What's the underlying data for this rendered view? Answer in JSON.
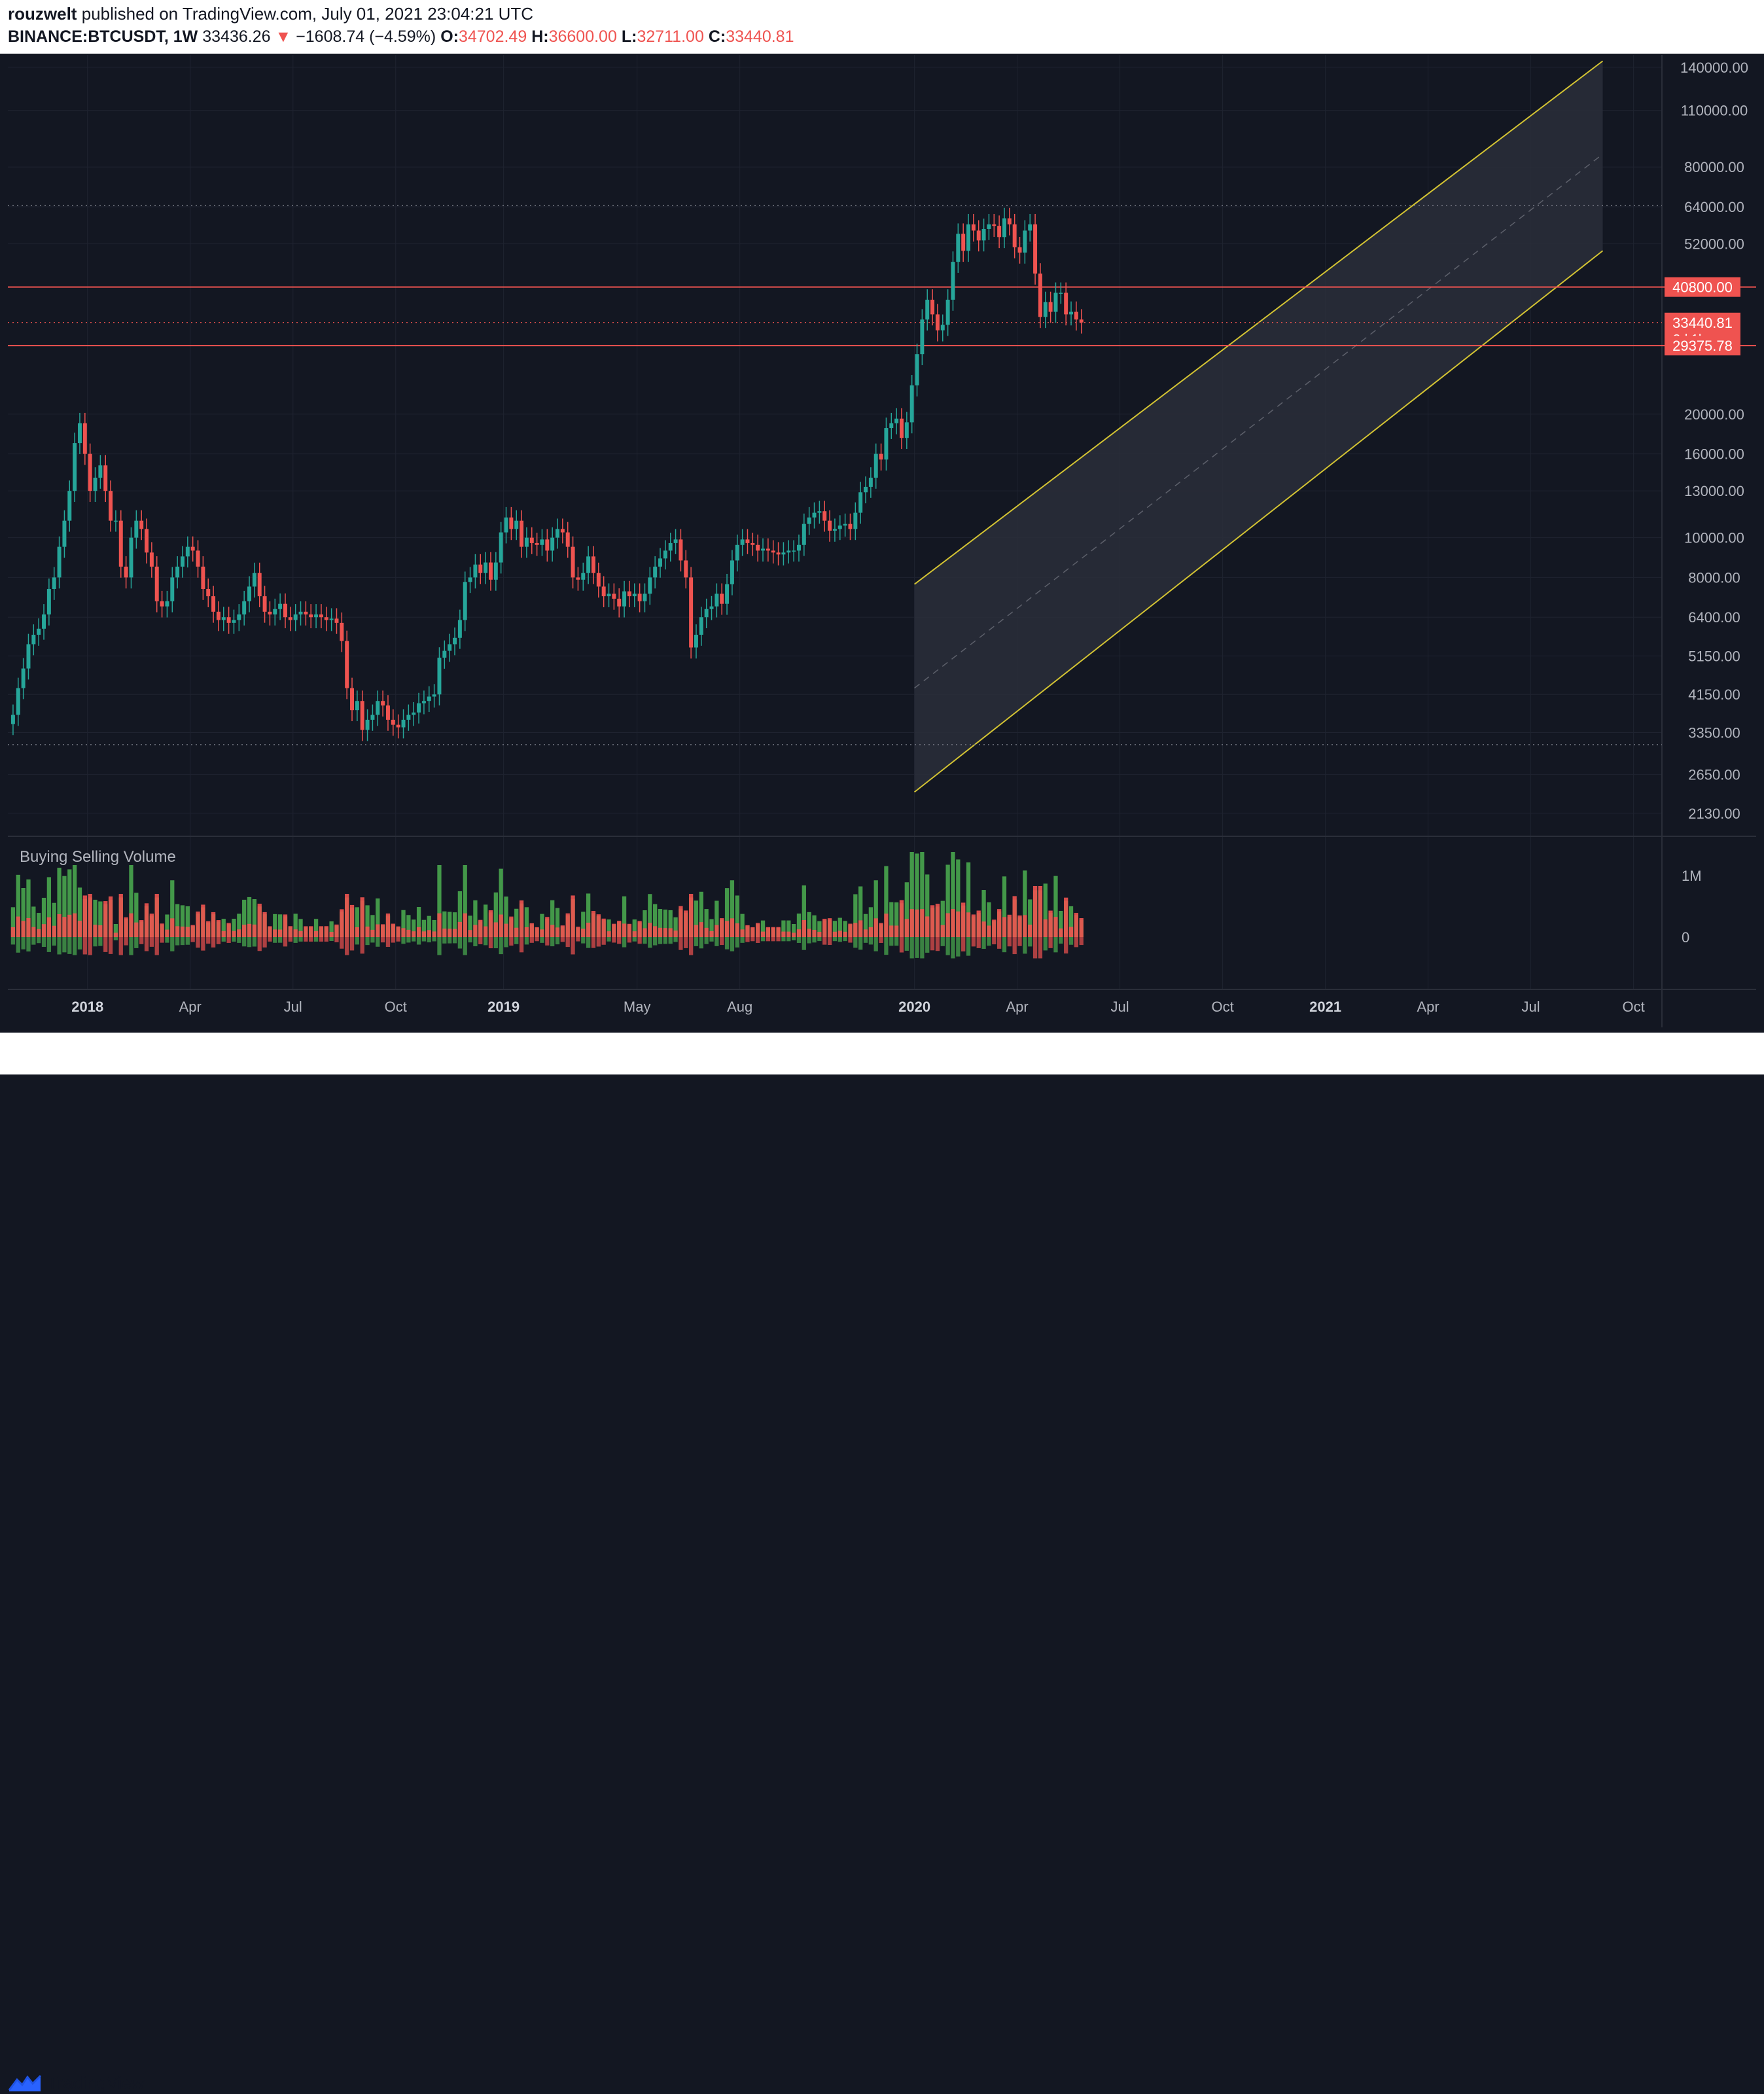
{
  "header": {
    "author": "rouzwelt",
    "published_text": "published on TradingView.com, July 01, 2021 23:04:21 UTC",
    "symbol": "BINANCE:BTCUSDT, 1W",
    "last": "33436.26",
    "change_arrow": "▼",
    "change": "−1608.74 (−4.59%)",
    "o_label": "O:",
    "o_value": "34702.49",
    "h_label": "H:",
    "h_value": "36600.00",
    "l_label": "L:",
    "l_value": "32711.00",
    "c_label": "C:",
    "c_value": "33440.81"
  },
  "footer": {
    "brand": "TradingView"
  },
  "volume_panel": {
    "title": "Buying Selling Volume"
  },
  "colors": {
    "background": "#131722",
    "grid": "#1f2330",
    "up": "#26a69a",
    "down": "#ef5350",
    "channel": "#d4c433",
    "channel_fill": "#2a2e3a",
    "hline": "#ef5350",
    "vol_buy": "#4caf50",
    "vol_sell": "#ef5350",
    "axis_text": "#b2b5be"
  },
  "chart_data": {
    "type": "candlestick",
    "title": "BINANCE:BTCUSDT, 1W",
    "y_scale": "log",
    "ylim": [
      1900,
      150000
    ],
    "y_ticks": [
      "140000.00",
      "110000.00",
      "80000.00",
      "64000.00",
      "52000.00",
      "40800.00",
      "33440.81",
      "29375.78",
      "20000.00",
      "16000.00",
      "13000.00",
      "10000.00",
      "8000.00",
      "6400.00",
      "5150.00",
      "4150.00",
      "3350.00",
      "2650.00",
      "2130.00"
    ],
    "y_tick_values": [
      140000,
      110000,
      80000,
      64000,
      52000,
      16000,
      13000,
      10000,
      8000,
      6400,
      5150,
      4150,
      3350,
      2650,
      2130,
      20000
    ],
    "price_labels": [
      {
        "text": "40800.00",
        "value": 40800
      },
      {
        "text": "33440.81",
        "value": 33440.81,
        "sub": "3d 1h"
      },
      {
        "text": "29375.78",
        "value": 29375.78
      }
    ],
    "x_ticks": [
      "2018",
      "Apr",
      "Jul",
      "Oct",
      "2019",
      "May",
      "Aug",
      "2020",
      "Apr",
      "Jul",
      "Oct",
      "2021",
      "Apr",
      "Jul",
      "Oct"
    ],
    "x_tick_weeks": [
      15,
      35,
      55,
      75,
      96,
      122,
      142,
      176,
      196,
      216,
      236,
      256,
      276,
      296,
      316
    ],
    "x_tick_bold": [
      true,
      false,
      false,
      false,
      true,
      false,
      false,
      true,
      false,
      false,
      false,
      true,
      false,
      false,
      false
    ],
    "horizontal_levels": [
      40800,
      29375.78
    ],
    "dotted_levels": [
      64500,
      33440.81,
      3130
    ],
    "channel": {
      "upper": [
        [
          176,
          7700
        ],
        [
          310,
          145000
        ]
      ],
      "lower": [
        [
          176,
          2400
        ],
        [
          310,
          50000
        ]
      ],
      "mid": [
        [
          176,
          4300
        ],
        [
          310,
          86000
        ]
      ],
      "box_end_week": 310
    },
    "volume_ticks": [
      "1M",
      "0"
    ],
    "candles_weekly_close": [
      3700,
      4300,
      4800,
      5500,
      5800,
      6000,
      6500,
      7500,
      8000,
      9500,
      11000,
      13000,
      17000,
      19000,
      16000,
      13000,
      14000,
      15000,
      13000,
      11000,
      11000,
      8500,
      8000,
      10000,
      11000,
      10500,
      9200,
      8500,
      7000,
      6800,
      7000,
      8000,
      8500,
      9000,
      9500,
      9300,
      8500,
      7500,
      7200,
      6600,
      6300,
      6400,
      6200,
      6300,
      6500,
      7000,
      7600,
      8200,
      7200,
      6600,
      6500,
      6700,
      6900,
      6400,
      6300,
      6500,
      6600,
      6500,
      6400,
      6500,
      6400,
      6300,
      6350,
      6200,
      5600,
      4300,
      3800,
      4000,
      3400,
      3600,
      3700,
      4000,
      3900,
      3600,
      3500,
      3450,
      3600,
      3700,
      3750,
      3950,
      4000,
      4100,
      4150,
      5100,
      5300,
      5500,
      5700,
      6300,
      7800,
      8000,
      8600,
      8200,
      8700,
      7900,
      8700,
      10300,
      11200,
      10500,
      11000,
      9500,
      10000,
      9700,
      9600,
      9900,
      9300,
      10000,
      10500,
      10300,
      9500,
      8000,
      7900,
      8200,
      9000,
      8200,
      7600,
      7200,
      7300,
      7100,
      6800,
      7400,
      7200,
      7300,
      7000,
      7300,
      8000,
      8500,
      8900,
      9300,
      9700,
      9900,
      8800,
      8000,
      5400,
      5800,
      6400,
      6700,
      6800,
      7300,
      6900,
      7700,
      8800,
      9600,
      9900,
      9700,
      9600,
      9300,
      9400,
      9300,
      9200,
      9100,
      9200,
      9300,
      9300,
      9600,
      10800,
      11200,
      11500,
      11600,
      11000,
      10400,
      10500,
      10700,
      10800,
      10500,
      11500,
      12900,
      13300,
      14000,
      16000,
      15500,
      18500,
      19000,
      19500,
      17500,
      19100,
      23500,
      28000,
      34000,
      38000,
      35000,
      32000,
      33000,
      38000,
      47000,
      55000,
      50000,
      58000,
      56000,
      53000,
      56500,
      58000,
      57500,
      54000,
      60000,
      58000,
      51000,
      49500,
      56000,
      58000,
      44000,
      34500,
      37500,
      35500,
      39500,
      39500,
      35000,
      35500,
      34000,
      33440
    ]
  }
}
